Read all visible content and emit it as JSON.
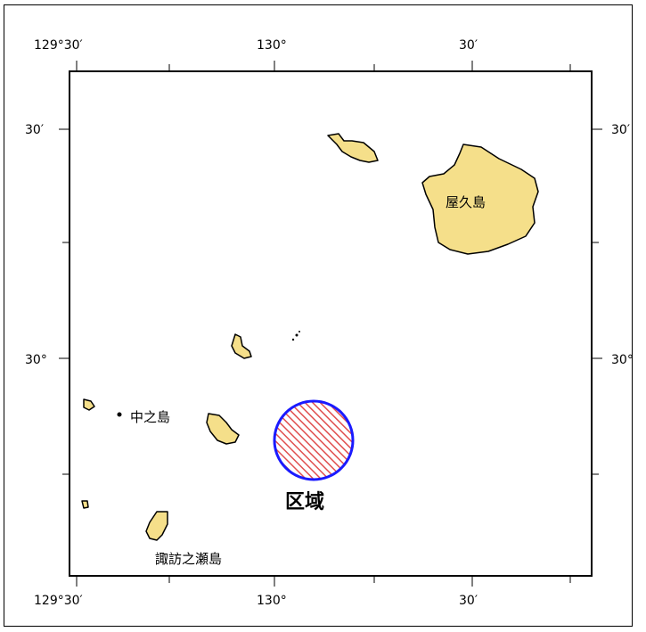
{
  "map": {
    "axes": {
      "top": [
        "129°30′",
        "130°",
        "30′"
      ],
      "bottom": [
        "129°30′",
        "130°",
        "30′"
      ],
      "left": [
        "30′",
        "30°"
      ],
      "right": [
        "30′",
        "30°"
      ]
    },
    "labels": {
      "yakushima": "屋久島",
      "nakanoshima": "中之島",
      "suwanosejima": "諏訪之瀬島",
      "area": "区域"
    },
    "colors": {
      "land": "#f5df8a",
      "coast": "#000000",
      "circle_stroke": "#1a1aff",
      "hatch": "#e05050"
    }
  }
}
